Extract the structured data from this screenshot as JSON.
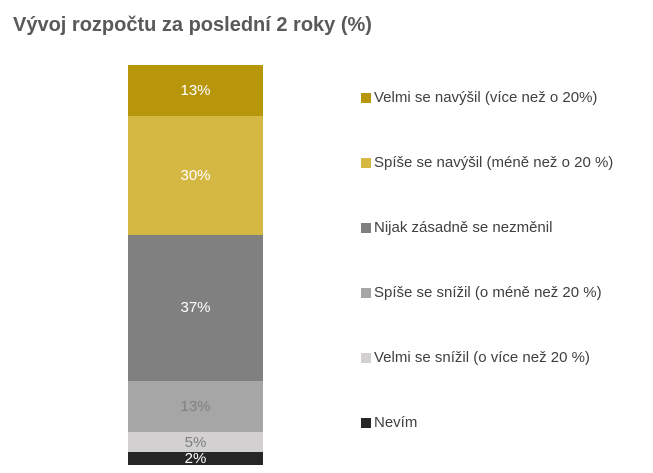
{
  "title": "Vývoj rozpočtu za poslední 2 roky (%)",
  "chart_data": {
    "type": "bar",
    "stacked": true,
    "orientation": "vertical",
    "title": "Vývoj rozpočtu za poslední 2 roky (%)",
    "unit": "%",
    "categories": [
      "Velmi se navýšil (více než o 20%)",
      "Spíše se navýšil (méně než o 20 %)",
      "Nijak zásadně se nezměnil",
      "Spíše se snížil (o méně než 20 %)",
      "Velmi se snížil (o více než 20 %)",
      "Nevím"
    ],
    "values": [
      13,
      30,
      37,
      13,
      5,
      2
    ],
    "segments": [
      {
        "label": "Velmi se navýšil (více než o 20%)",
        "value": 13,
        "display": "13%",
        "color": "#B8960C",
        "label_color": "#FFFFFF"
      },
      {
        "label": "Spíše se navýšil (méně než o 20 %)",
        "value": 30,
        "display": "30%",
        "color": "#D5B744",
        "label_color": "#FFFFFF"
      },
      {
        "label": "Nijak zásadně se nezměnil",
        "value": 37,
        "display": "37%",
        "color": "#808080",
        "label_color": "#FFFFFF"
      },
      {
        "label": "Spíše se snížil (o méně než 20 %)",
        "value": 13,
        "display": "13%",
        "color": "#A6A6A6",
        "label_color": "#7F7F7F"
      },
      {
        "label": "Velmi se snížil (o více než 20 %)",
        "value": 5,
        "display": "5%",
        "color": "#D2D0D0",
        "label_color": "#7F7F7F"
      },
      {
        "label": "Nevím",
        "value": 2,
        "display": "2%",
        "color": "#262626",
        "label_color": "#FFFFFF"
      }
    ],
    "legend_position": "right",
    "background": "#FFFFFF",
    "title_color": "#595959",
    "legend_text_color": "#404040",
    "ylim": [
      0,
      100
    ],
    "grid": false
  }
}
